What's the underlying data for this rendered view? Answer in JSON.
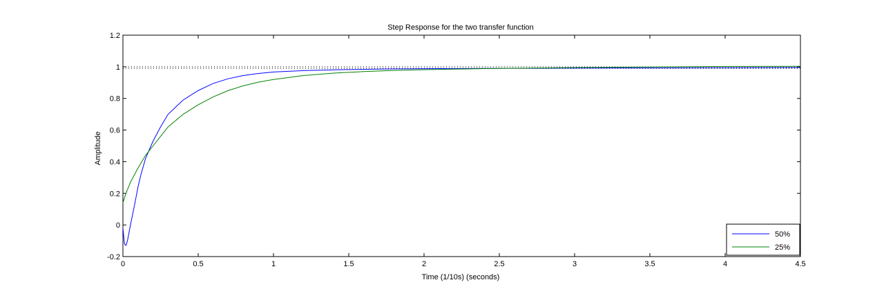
{
  "chart_data": {
    "type": "line",
    "title": "Step Response for the two transfer function",
    "xlabel": "Time (1/10s) (seconds)",
    "ylabel": "Amplitude",
    "xlim": [
      0,
      4.5
    ],
    "ylim": [
      -0.2,
      1.2
    ],
    "xticks": [
      0,
      0.5,
      1,
      1.5,
      2,
      2.5,
      3,
      3.5,
      4,
      4.5
    ],
    "xtick_labels": [
      "0",
      "0.5",
      "1",
      "1.5",
      "2",
      "2.5",
      "3",
      "3.5",
      "4",
      "4.5"
    ],
    "yticks": [
      -0.2,
      0,
      0.2,
      0.4,
      0.6,
      0.8,
      1,
      1.2
    ],
    "ytick_labels": [
      "-0.2",
      "0",
      "0.2",
      "0.4",
      "0.6",
      "0.8",
      "1",
      "1.2"
    ],
    "grid": false,
    "legend_position": "bottom-right",
    "reference_lines": [
      {
        "y": 1.0,
        "style": "dotted",
        "color": "#000000"
      },
      {
        "y": 0.99,
        "style": "dotted",
        "color": "#000000"
      }
    ],
    "series": [
      {
        "name": "50%",
        "color": "#0000ff",
        "x": [
          0,
          0.01,
          0.02,
          0.03,
          0.05,
          0.08,
          0.1,
          0.12,
          0.15,
          0.2,
          0.25,
          0.3,
          0.4,
          0.5,
          0.6,
          0.7,
          0.8,
          0.9,
          1.0,
          1.2,
          1.4,
          1.6,
          1.8,
          2.0,
          2.5,
          3.0,
          3.5,
          4.0,
          4.5
        ],
        "values": [
          -0.02,
          -0.12,
          -0.13,
          -0.1,
          0.0,
          0.14,
          0.24,
          0.32,
          0.42,
          0.53,
          0.62,
          0.7,
          0.79,
          0.85,
          0.895,
          0.925,
          0.945,
          0.958,
          0.967,
          0.976,
          0.981,
          0.984,
          0.987,
          0.988,
          0.99,
          0.992,
          0.993,
          0.994,
          0.995
        ]
      },
      {
        "name": "25%",
        "color": "#008000",
        "x": [
          0,
          0.02,
          0.05,
          0.1,
          0.15,
          0.2,
          0.25,
          0.3,
          0.4,
          0.5,
          0.6,
          0.7,
          0.8,
          0.9,
          1.0,
          1.2,
          1.4,
          1.6,
          1.8,
          2.0,
          2.5,
          3.0,
          3.5,
          4.0,
          4.5
        ],
        "values": [
          0.14,
          0.2,
          0.27,
          0.36,
          0.44,
          0.5,
          0.56,
          0.62,
          0.7,
          0.76,
          0.81,
          0.85,
          0.88,
          0.903,
          0.92,
          0.945,
          0.96,
          0.97,
          0.977,
          0.982,
          0.99,
          0.995,
          0.999,
          1.002,
          1.003
        ]
      }
    ]
  }
}
